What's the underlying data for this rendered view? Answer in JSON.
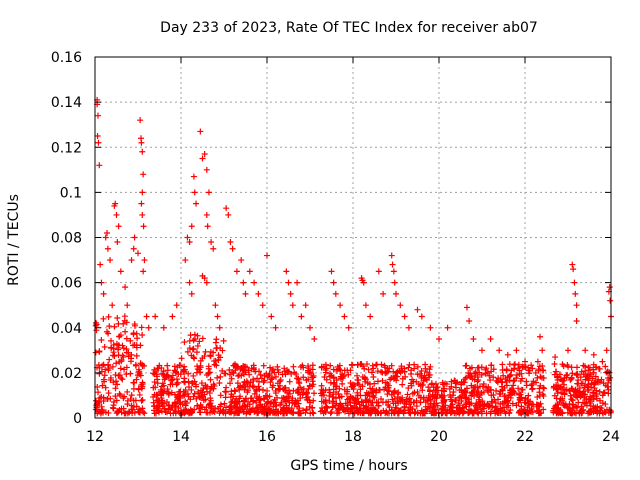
{
  "chart_data": {
    "type": "scatter",
    "title": "Day 233 of 2023, Rate Of TEC Index for receiver ab07",
    "xlabel": "GPS time / hours",
    "ylabel": "ROTI / TECUs",
    "xlim": [
      12,
      24
    ],
    "ylim": [
      0,
      0.16
    ],
    "xticks": [
      12,
      14,
      16,
      18,
      20,
      22,
      24
    ],
    "xtick_labels": [
      "12",
      "14",
      "16",
      "18",
      "20",
      "22",
      "24"
    ],
    "yticks": [
      0,
      0.02,
      0.04,
      0.06,
      0.08,
      0.1,
      0.12,
      0.14,
      0.16
    ],
    "ytick_labels": [
      "0",
      "0.02",
      "0.04",
      "0.06",
      "0.08",
      "0.1",
      "0.12",
      "0.14",
      "0.16"
    ],
    "grid": true,
    "marker": "+",
    "color": "#ff0000",
    "series": [
      {
        "name": "ROTI",
        "points": [
          [
            12.05,
            0.139
          ],
          [
            12.07,
            0.134
          ],
          [
            12.06,
            0.125
          ],
          [
            12.08,
            0.122
          ],
          [
            12.1,
            0.112
          ],
          [
            12.05,
            0.141
          ],
          [
            12.12,
            0.068
          ],
          [
            12.15,
            0.06
          ],
          [
            12.2,
            0.055
          ],
          [
            12.25,
            0.08
          ],
          [
            12.28,
            0.082
          ],
          [
            12.3,
            0.075
          ],
          [
            12.35,
            0.07
          ],
          [
            12.45,
            0.094
          ],
          [
            12.47,
            0.095
          ],
          [
            12.5,
            0.09
          ],
          [
            12.55,
            0.085
          ],
          [
            12.52,
            0.078
          ],
          [
            12.6,
            0.065
          ],
          [
            12.4,
            0.05
          ],
          [
            12.7,
            0.058
          ],
          [
            12.75,
            0.05
          ],
          [
            12.85,
            0.07
          ],
          [
            12.9,
            0.075
          ],
          [
            12.92,
            0.08
          ],
          [
            13.0,
            0.073
          ],
          [
            13.05,
            0.132
          ],
          [
            13.07,
            0.124
          ],
          [
            13.08,
            0.122
          ],
          [
            13.1,
            0.118
          ],
          [
            13.12,
            0.108
          ],
          [
            13.1,
            0.1
          ],
          [
            13.08,
            0.095
          ],
          [
            13.1,
            0.09
          ],
          [
            13.13,
            0.085
          ],
          [
            13.15,
            0.07
          ],
          [
            13.12,
            0.065
          ],
          [
            13.2,
            0.045
          ],
          [
            13.25,
            0.04
          ],
          [
            13.4,
            0.045
          ],
          [
            13.6,
            0.04
          ],
          [
            13.8,
            0.045
          ],
          [
            13.9,
            0.05
          ],
          [
            14.1,
            0.07
          ],
          [
            14.15,
            0.08
          ],
          [
            14.2,
            0.078
          ],
          [
            14.25,
            0.085
          ],
          [
            14.3,
            0.107
          ],
          [
            14.32,
            0.1
          ],
          [
            14.35,
            0.095
          ],
          [
            14.45,
            0.127
          ],
          [
            14.5,
            0.115
          ],
          [
            14.55,
            0.117
          ],
          [
            14.6,
            0.11
          ],
          [
            14.65,
            0.1
          ],
          [
            14.6,
            0.09
          ],
          [
            14.62,
            0.085
          ],
          [
            14.7,
            0.078
          ],
          [
            14.75,
            0.075
          ],
          [
            14.5,
            0.063
          ],
          [
            14.55,
            0.062
          ],
          [
            14.6,
            0.06
          ],
          [
            14.2,
            0.06
          ],
          [
            14.25,
            0.055
          ],
          [
            14.8,
            0.05
          ],
          [
            14.85,
            0.045
          ],
          [
            14.9,
            0.04
          ],
          [
            15.05,
            0.093
          ],
          [
            15.1,
            0.09
          ],
          [
            15.15,
            0.078
          ],
          [
            15.2,
            0.075
          ],
          [
            15.3,
            0.065
          ],
          [
            15.4,
            0.07
          ],
          [
            15.45,
            0.06
          ],
          [
            15.5,
            0.055
          ],
          [
            15.6,
            0.065
          ],
          [
            15.7,
            0.06
          ],
          [
            15.8,
            0.055
          ],
          [
            15.9,
            0.05
          ],
          [
            16.0,
            0.072
          ],
          [
            16.1,
            0.045
          ],
          [
            16.2,
            0.04
          ],
          [
            16.45,
            0.065
          ],
          [
            16.5,
            0.06
          ],
          [
            16.55,
            0.055
          ],
          [
            16.6,
            0.05
          ],
          [
            16.7,
            0.06
          ],
          [
            16.8,
            0.045
          ],
          [
            16.9,
            0.05
          ],
          [
            17.0,
            0.04
          ],
          [
            17.1,
            0.035
          ],
          [
            17.5,
            0.065
          ],
          [
            17.55,
            0.06
          ],
          [
            17.6,
            0.055
          ],
          [
            17.7,
            0.05
          ],
          [
            17.8,
            0.045
          ],
          [
            17.9,
            0.04
          ],
          [
            18.2,
            0.062
          ],
          [
            18.22,
            0.061
          ],
          [
            18.25,
            0.06
          ],
          [
            18.3,
            0.05
          ],
          [
            18.4,
            0.045
          ],
          [
            18.6,
            0.065
          ],
          [
            18.7,
            0.055
          ],
          [
            18.9,
            0.072
          ],
          [
            18.92,
            0.068
          ],
          [
            18.95,
            0.065
          ],
          [
            18.97,
            0.06
          ],
          [
            19.0,
            0.055
          ],
          [
            19.1,
            0.05
          ],
          [
            19.2,
            0.045
          ],
          [
            19.3,
            0.04
          ],
          [
            19.5,
            0.048
          ],
          [
            19.6,
            0.045
          ],
          [
            19.8,
            0.04
          ],
          [
            20.0,
            0.035
          ],
          [
            20.2,
            0.04
          ],
          [
            20.65,
            0.049
          ],
          [
            20.7,
            0.043
          ],
          [
            20.8,
            0.035
          ],
          [
            21.0,
            0.03
          ],
          [
            21.2,
            0.035
          ],
          [
            21.4,
            0.03
          ],
          [
            21.6,
            0.028
          ],
          [
            21.8,
            0.03
          ],
          [
            22.0,
            0.025
          ],
          [
            22.35,
            0.036
          ],
          [
            22.4,
            0.03
          ],
          [
            22.3,
            0.025
          ],
          [
            22.7,
            0.027
          ],
          [
            23.0,
            0.03
          ],
          [
            23.1,
            0.068
          ],
          [
            23.12,
            0.066
          ],
          [
            23.15,
            0.06
          ],
          [
            23.17,
            0.055
          ],
          [
            23.2,
            0.05
          ],
          [
            23.2,
            0.043
          ],
          [
            23.4,
            0.03
          ],
          [
            23.6,
            0.028
          ],
          [
            23.8,
            0.025
          ],
          [
            23.9,
            0.03
          ],
          [
            23.95,
            0.056
          ],
          [
            23.97,
            0.058
          ],
          [
            23.98,
            0.052
          ],
          [
            24.0,
            0.045
          ]
        ]
      }
    ]
  }
}
